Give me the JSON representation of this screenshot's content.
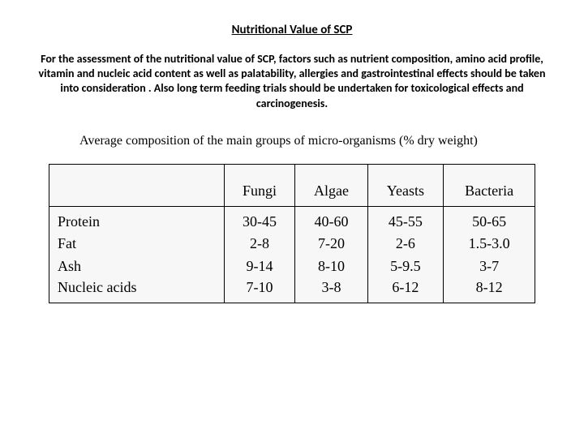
{
  "title": "Nutritional Value of SCP",
  "body": "For the assessment of the nutritional value of SCP, factors such as nutrient composition, amino acid profile, vitamin and nucleic acid content as well as palatability, allergies and gastrointestinal effects should be taken into consideration . Also long term feeding trials should be undertaken for toxicological effects and carcinogenesis.",
  "subtitle": "Average composition of the main groups of micro-organisms (% dry weight)",
  "table": {
    "type": "table",
    "background_color": "#f7f7f7",
    "border_color": "#000000",
    "header_fontsize": 18,
    "cell_fontsize": 18,
    "font_family_table": "Times New Roman",
    "columns": [
      "",
      "Fungi",
      "Algae",
      "Yeasts",
      "Bacteria"
    ],
    "rows": [
      [
        "Protein",
        "30-45",
        "40-60",
        "45-55",
        "50-65"
      ],
      [
        "Fat",
        "2-8",
        "7-20",
        "2-6",
        "1.5-3.0"
      ],
      [
        "Ash",
        "9-14",
        "8-10",
        "5-9.5",
        "3-7"
      ],
      [
        "Nucleic acids",
        "7-10",
        "3-8",
        "6-12",
        "8-12"
      ]
    ]
  },
  "colors": {
    "page_background": "#ffffff",
    "text": "#000000"
  },
  "typography": {
    "title_fontsize": 15,
    "body_fontsize": 14,
    "subtitle_fontsize": 16,
    "title_weight": 700,
    "body_weight": 700
  }
}
